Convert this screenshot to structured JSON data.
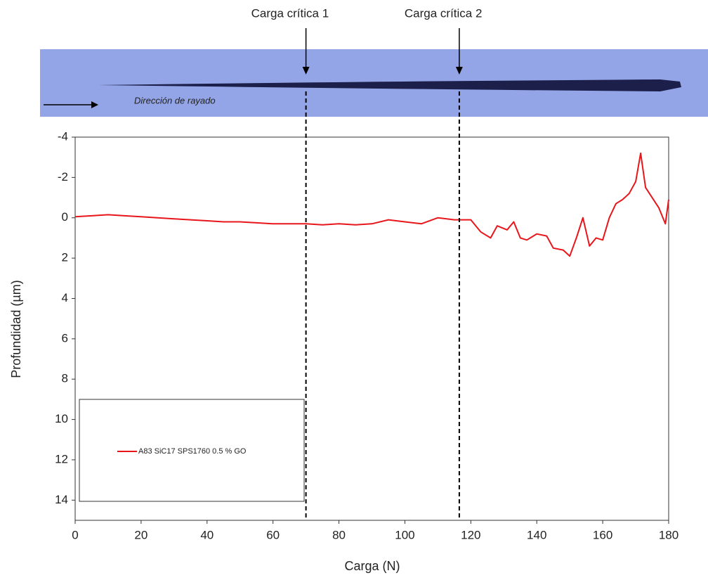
{
  "chart_data": {
    "type": "line",
    "x_label": "Carga (N)",
    "y_label": "Profundidad (µm)",
    "strip_label": "Dirección de rayado",
    "critical_loads": [
      {
        "label": "Carga crítica 1",
        "x": 70
      },
      {
        "label": "Carga crítica 2",
        "x": 116.5
      }
    ],
    "xlim": [
      0,
      180
    ],
    "xticks": [
      0,
      20,
      40,
      60,
      80,
      100,
      120,
      140,
      160,
      180
    ],
    "ylim": [
      -4,
      15
    ],
    "y_inverted": true,
    "yticks": [
      -4,
      -2,
      0,
      2,
      4,
      6,
      8,
      10,
      12,
      14
    ],
    "legend": "lower left",
    "series": [
      {
        "name": "A83 SiC17 SPS1760 0.5 % GO",
        "color": "#e8161b",
        "x": [
          0,
          5,
          10,
          15,
          20,
          25,
          30,
          35,
          40,
          45,
          50,
          55,
          60,
          65,
          70,
          75,
          80,
          85,
          90,
          95,
          100,
          105,
          110,
          115,
          120,
          123,
          126,
          128,
          131,
          133,
          135,
          137,
          140,
          143,
          145,
          148,
          150,
          152,
          154,
          156,
          158,
          160,
          162,
          164,
          166,
          168,
          170,
          171.5,
          173,
          175,
          177,
          179,
          180
        ],
        "values": [
          -0.05,
          -0.1,
          -0.15,
          -0.1,
          -0.05,
          0,
          0.05,
          0.1,
          0.15,
          0.2,
          0.2,
          0.25,
          0.3,
          0.3,
          0.3,
          0.35,
          0.3,
          0.35,
          0.3,
          0.1,
          0.2,
          0.3,
          0,
          0.1,
          0.1,
          0.7,
          1,
          0.4,
          0.6,
          0.2,
          1,
          1.1,
          0.8,
          0.9,
          1.5,
          1.6,
          1.9,
          1,
          0,
          1.4,
          1,
          1.1,
          0,
          -0.7,
          -0.9,
          -1.2,
          -1.8,
          -3.2,
          -1.5,
          -1,
          -0.5,
          0.3,
          -0.9
        ]
      }
    ]
  }
}
